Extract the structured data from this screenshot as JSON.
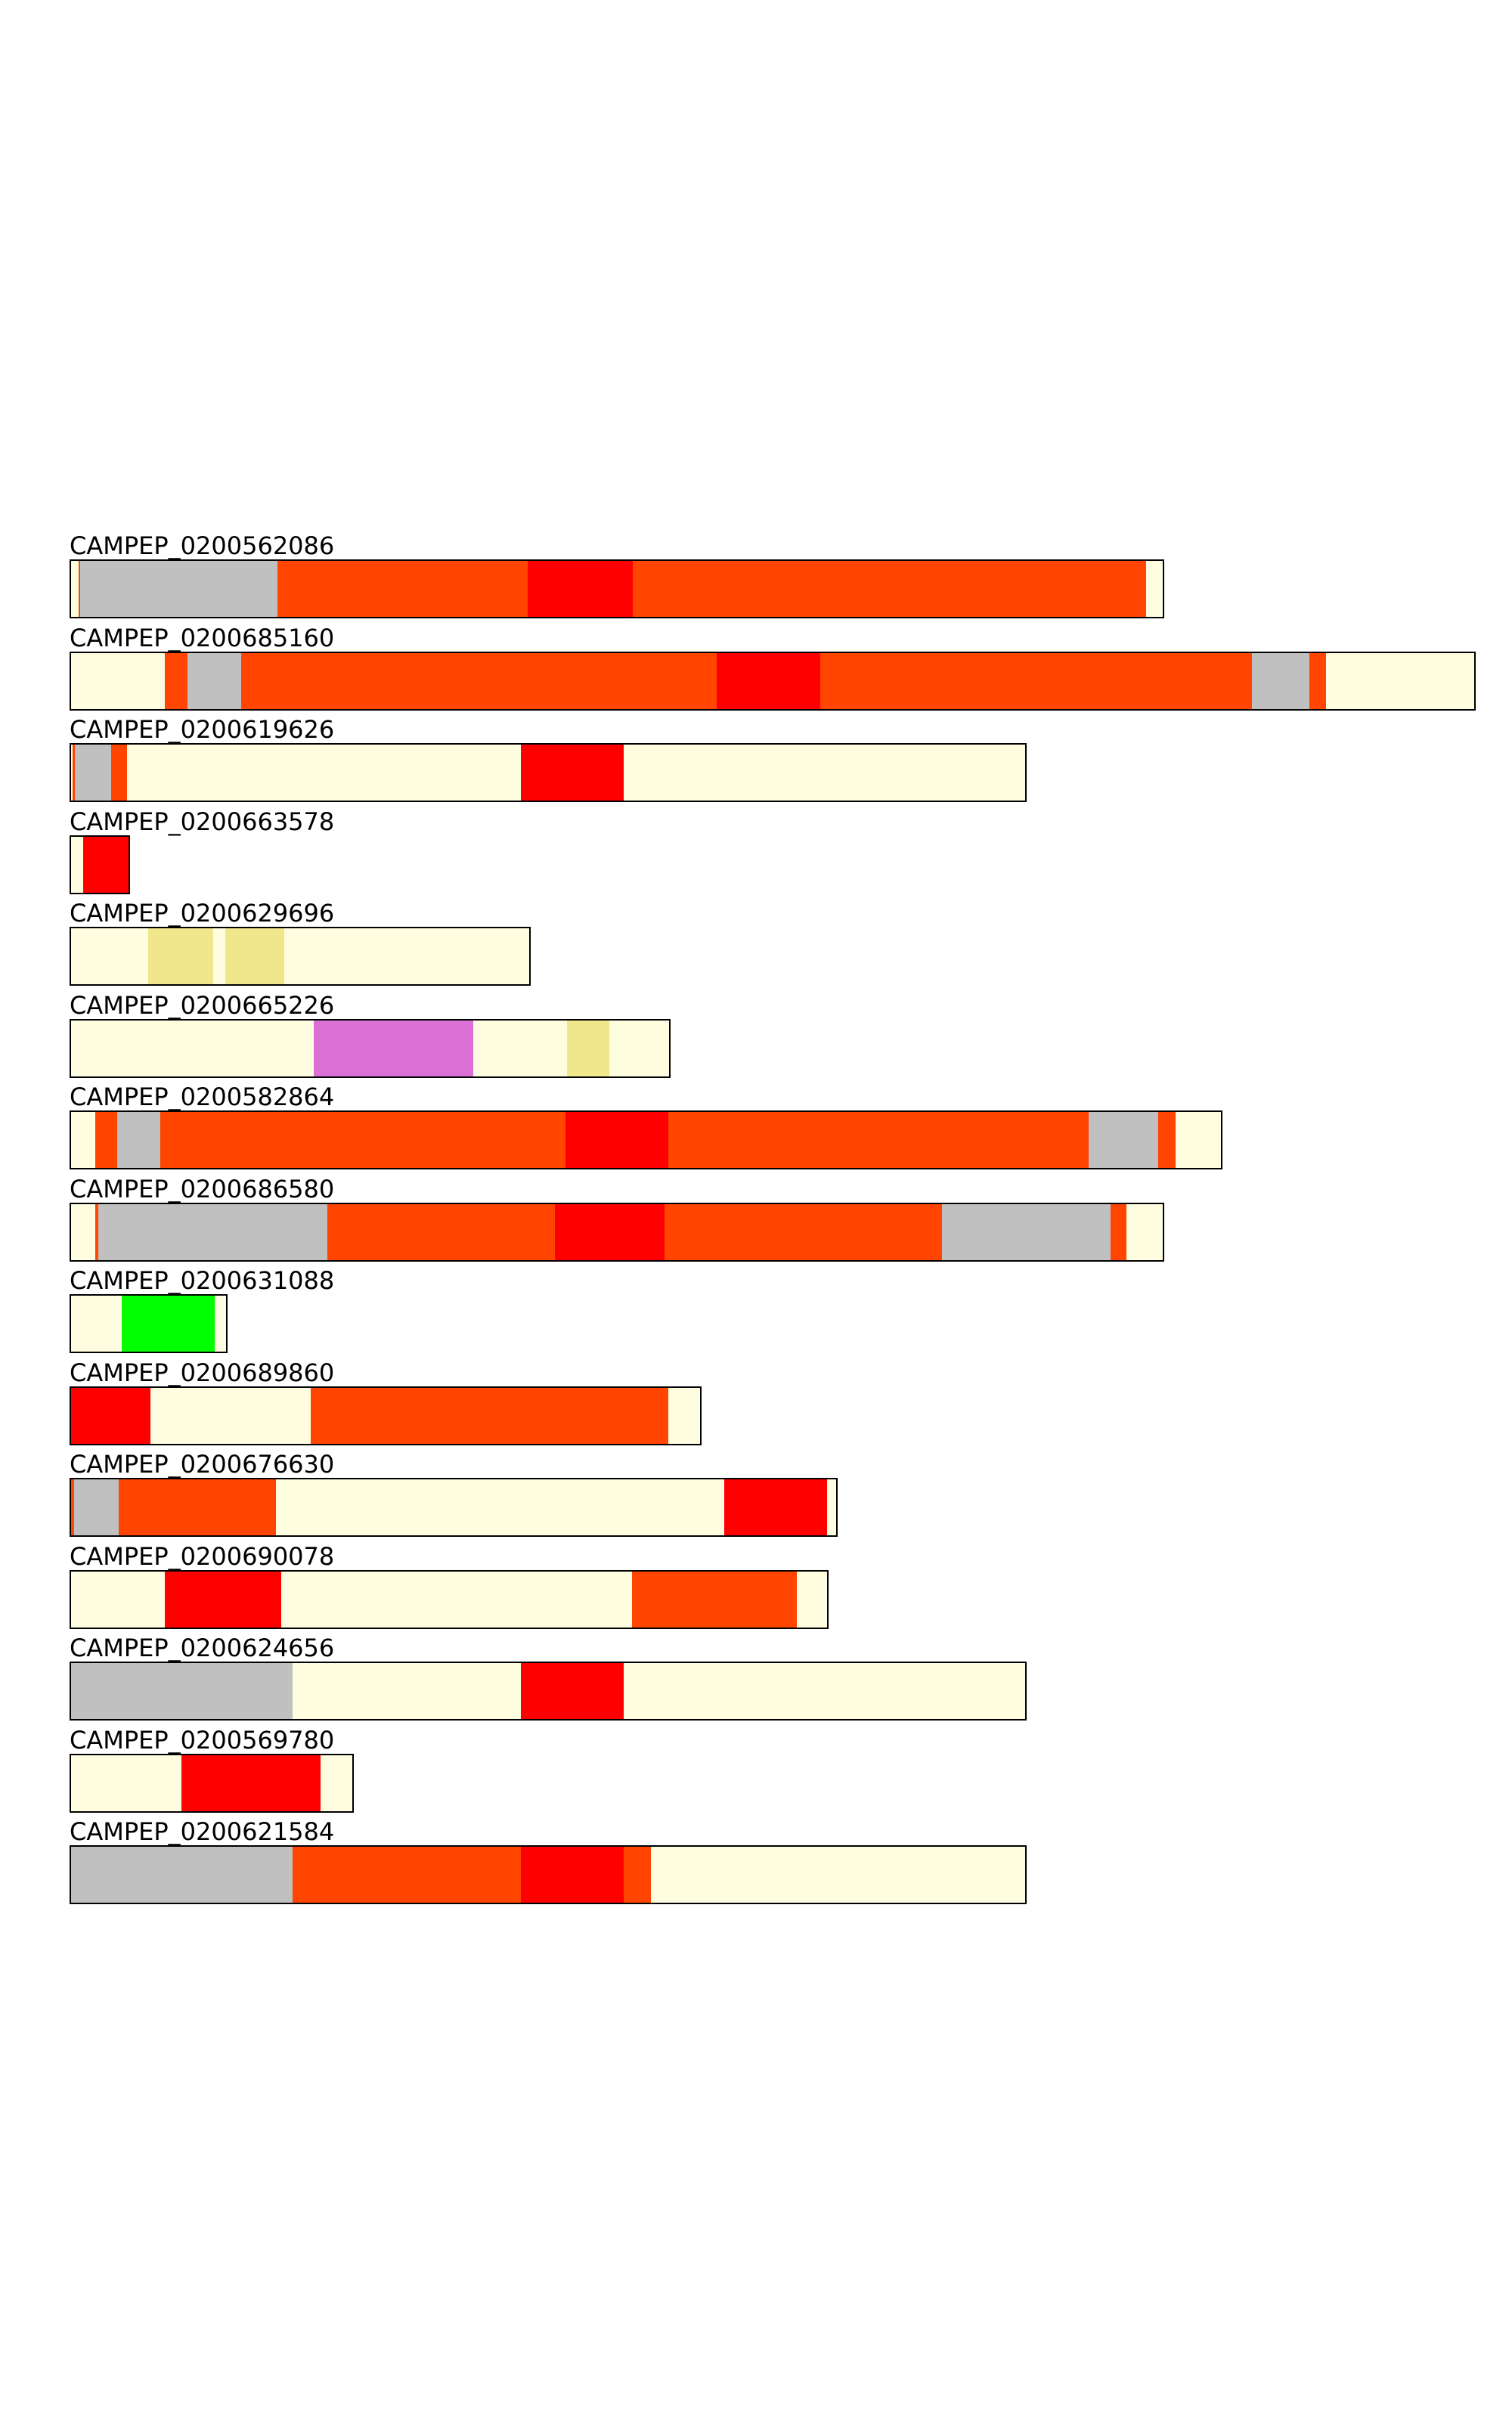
{
  "colors": {
    "background": "#fffde0",
    "gray": "#c0c0c0",
    "orange": "#ff4500",
    "red": "#ff0000",
    "khaki": "#f0e68c",
    "orchid": "#da70d6",
    "green": "#00ff00"
  },
  "scale_max": 1860,
  "tracks": [
    {
      "label": "CAMPEP_0200562086",
      "length": 1448,
      "segments": [
        {
          "start": 12,
          "end": 14,
          "color": "orange"
        },
        {
          "start": 14,
          "end": 275,
          "color": "gray"
        },
        {
          "start": 275,
          "end": 606,
          "color": "orange"
        },
        {
          "start": 606,
          "end": 745,
          "color": "red"
        },
        {
          "start": 745,
          "end": 1424,
          "color": "orange"
        }
      ]
    },
    {
      "label": "CAMPEP_0200685160",
      "length": 1860,
      "segments": [
        {
          "start": 126,
          "end": 156,
          "color": "orange"
        },
        {
          "start": 156,
          "end": 227,
          "color": "gray"
        },
        {
          "start": 227,
          "end": 856,
          "color": "orange"
        },
        {
          "start": 856,
          "end": 993,
          "color": "red"
        },
        {
          "start": 993,
          "end": 1564,
          "color": "orange"
        },
        {
          "start": 1564,
          "end": 1640,
          "color": "gray"
        },
        {
          "start": 1640,
          "end": 1662,
          "color": "orange"
        }
      ]
    },
    {
      "label": "CAMPEP_0200619626",
      "length": 1266,
      "segments": [
        {
          "start": 4,
          "end": 7,
          "color": "orange"
        },
        {
          "start": 7,
          "end": 55,
          "color": "gray"
        },
        {
          "start": 55,
          "end": 76,
          "color": "orange"
        },
        {
          "start": 597,
          "end": 733,
          "color": "red"
        }
      ]
    },
    {
      "label": "CAMPEP_0200663578",
      "length": 80,
      "segments": [
        {
          "start": 18,
          "end": 80,
          "color": "red"
        }
      ]
    },
    {
      "label": "CAMPEP_0200629696",
      "length": 610,
      "segments": [
        {
          "start": 104,
          "end": 190,
          "color": "khaki"
        },
        {
          "start": 206,
          "end": 284,
          "color": "khaki"
        }
      ]
    },
    {
      "label": "CAMPEP_0200665226",
      "length": 795,
      "segments": [
        {
          "start": 323,
          "end": 534,
          "color": "orchid"
        },
        {
          "start": 658,
          "end": 714,
          "color": "khaki"
        }
      ]
    },
    {
      "label": "CAMPEP_0200582864",
      "length": 1525,
      "segments": [
        {
          "start": 34,
          "end": 63,
          "color": "orange"
        },
        {
          "start": 63,
          "end": 120,
          "color": "gray"
        },
        {
          "start": 120,
          "end": 656,
          "color": "orange"
        },
        {
          "start": 656,
          "end": 792,
          "color": "red"
        },
        {
          "start": 792,
          "end": 1348,
          "color": "orange"
        },
        {
          "start": 1348,
          "end": 1440,
          "color": "gray"
        },
        {
          "start": 1440,
          "end": 1463,
          "color": "orange"
        }
      ]
    },
    {
      "label": "CAMPEP_0200686580",
      "length": 1448,
      "segments": [
        {
          "start": 34,
          "end": 38,
          "color": "orange"
        },
        {
          "start": 38,
          "end": 341,
          "color": "gray"
        },
        {
          "start": 341,
          "end": 642,
          "color": "orange"
        },
        {
          "start": 642,
          "end": 787,
          "color": "red"
        },
        {
          "start": 787,
          "end": 1154,
          "color": "orange"
        },
        {
          "start": 1154,
          "end": 1377,
          "color": "gray"
        },
        {
          "start": 1377,
          "end": 1398,
          "color": "orange"
        }
      ]
    },
    {
      "label": "CAMPEP_0200631088",
      "length": 209,
      "segments": [
        {
          "start": 69,
          "end": 192,
          "color": "green"
        }
      ]
    },
    {
      "label": "CAMPEP_0200689860",
      "length": 836,
      "segments": [
        {
          "start": 0,
          "end": 107,
          "color": "red"
        },
        {
          "start": 319,
          "end": 792,
          "color": "orange"
        }
      ]
    },
    {
      "label": "CAMPEP_0200676630",
      "length": 1016,
      "segments": [
        {
          "start": 0,
          "end": 6,
          "color": "orange"
        },
        {
          "start": 6,
          "end": 65,
          "color": "gray"
        },
        {
          "start": 65,
          "end": 273,
          "color": "orange"
        },
        {
          "start": 866,
          "end": 1002,
          "color": "red"
        }
      ]
    },
    {
      "label": "CAMPEP_0200690078",
      "length": 1004,
      "segments": [
        {
          "start": 126,
          "end": 280,
          "color": "red"
        },
        {
          "start": 744,
          "end": 962,
          "color": "orange"
        }
      ]
    },
    {
      "label": "CAMPEP_0200624656",
      "length": 1266,
      "segments": [
        {
          "start": 0,
          "end": 295,
          "color": "gray"
        },
        {
          "start": 597,
          "end": 733,
          "color": "red"
        }
      ]
    },
    {
      "label": "CAMPEP_0200569780",
      "length": 376,
      "segments": [
        {
          "start": 148,
          "end": 332,
          "color": "red"
        }
      ]
    },
    {
      "label": "CAMPEP_0200621584",
      "length": 1266,
      "segments": [
        {
          "start": 0,
          "end": 295,
          "color": "gray"
        },
        {
          "start": 295,
          "end": 597,
          "color": "orange"
        },
        {
          "start": 597,
          "end": 733,
          "color": "red"
        },
        {
          "start": 733,
          "end": 769,
          "color": "orange"
        }
      ]
    }
  ]
}
